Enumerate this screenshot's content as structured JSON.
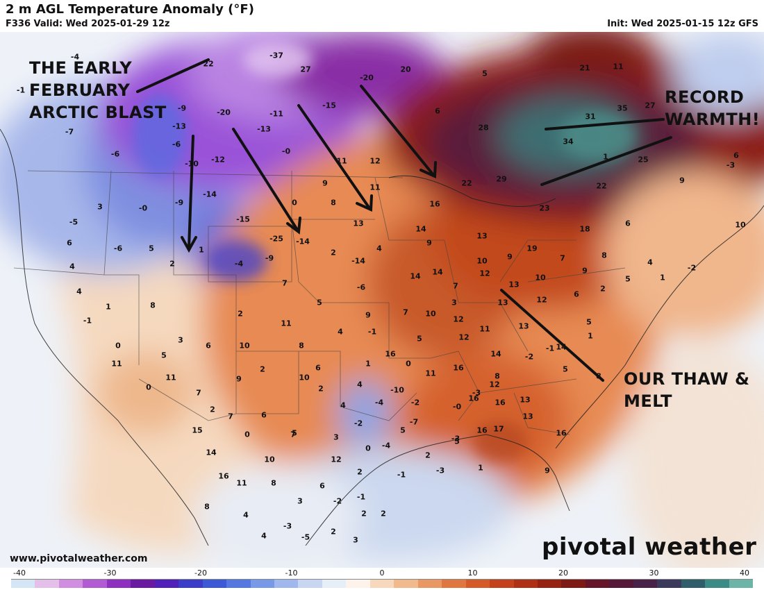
{
  "header": {
    "title": "2 m AGL Temperature Anomaly (°F)",
    "valid": "F336 Valid: Wed 2025-01-29 12z",
    "init": "Init: Wed 2025-01-15 12z GFS"
  },
  "annotations": {
    "arctic_blast": "THE EARLY\nFEBRUARY\nARCTIC BLAST",
    "record_warmth": "RECORD\nWARMTH!",
    "thaw_melt": "OUR THAW &\nMELT"
  },
  "brand": {
    "logo_text": "pivotal weather",
    "website": "www.pivotalweather.com"
  },
  "colorbar": {
    "ticks": [
      "-40",
      "-30",
      "-20",
      "-10",
      "0",
      "10",
      "20",
      "30",
      "40"
    ],
    "colors": [
      "#d4e6f5",
      "#e4bfe9",
      "#d18ee0",
      "#b25ad4",
      "#8f2fbf",
      "#6a1aa0",
      "#5020b8",
      "#3b3dc8",
      "#3d5ad6",
      "#5578e0",
      "#7899e8",
      "#a0b8ee",
      "#c8d6f2",
      "#e6eef8",
      "#fdf3ea",
      "#f8d8bc",
      "#f2b98d",
      "#ea9863",
      "#e07640",
      "#d45a28",
      "#c4421b",
      "#ae3015",
      "#962212",
      "#7d1a16",
      "#66152a",
      "#561838",
      "#4a2148",
      "#3c3a5c",
      "#2f5e6a",
      "#3a8a86",
      "#6cb3a8"
    ]
  },
  "map": {
    "values": [
      {
        "t": "-4",
        "k": "u"
      },
      {
        "t": "-1",
        "k": "u"
      },
      {
        "t": "22",
        "k": "w"
      },
      {
        "t": "-37",
        "k": "u"
      },
      {
        "t": "27",
        "k": "w"
      },
      {
        "t": "-20",
        "k": "u"
      },
      {
        "t": "20",
        "k": "w"
      },
      {
        "t": "5",
        "k": "w"
      },
      {
        "t": "21",
        "k": "w"
      },
      {
        "t": "11",
        "k": "w"
      },
      {
        "t": "-9",
        "k": "u"
      },
      {
        "t": "-20",
        "k": "u"
      },
      {
        "t": "-11",
        "k": "u"
      },
      {
        "t": "-15",
        "k": "u"
      },
      {
        "t": "6",
        "k": "w"
      },
      {
        "t": "28",
        "k": "w"
      },
      {
        "t": "31",
        "k": "w"
      },
      {
        "t": "35",
        "k": "w"
      },
      {
        "t": "27",
        "k": "w"
      },
      {
        "t": "-7",
        "k": "u"
      },
      {
        "t": "-13",
        "k": "u"
      },
      {
        "t": "-13",
        "k": "u"
      },
      {
        "t": "-6",
        "k": "u"
      },
      {
        "t": "-0",
        "k": "u"
      },
      {
        "t": "34",
        "k": "w"
      },
      {
        "t": "1",
        "k": "w"
      },
      {
        "t": "25",
        "k": "w"
      },
      {
        "t": "6",
        "k": "w"
      },
      {
        "t": "-6",
        "k": "u"
      },
      {
        "t": "-10",
        "k": "u"
      },
      {
        "t": "-12",
        "k": "u"
      },
      {
        "t": "11",
        "k": "w"
      },
      {
        "t": "12",
        "k": "w"
      },
      {
        "t": "-3",
        "k": "u"
      },
      {
        "t": "29",
        "k": "w"
      },
      {
        "t": "22",
        "k": "w"
      },
      {
        "t": "22",
        "k": "w"
      },
      {
        "t": "9",
        "k": "w"
      },
      {
        "t": "3",
        "k": "w"
      },
      {
        "t": "-0",
        "k": "u"
      },
      {
        "t": "-9",
        "k": "u"
      },
      {
        "t": "-14",
        "k": "u"
      },
      {
        "t": "0",
        "k": "w"
      },
      {
        "t": "9",
        "k": "w"
      },
      {
        "t": "11",
        "k": "w"
      },
      {
        "t": "16",
        "k": "w"
      },
      {
        "t": "23",
        "k": "w"
      },
      {
        "t": "6",
        "k": "w"
      },
      {
        "t": "-5",
        "k": "u"
      },
      {
        "t": "-15",
        "k": "u"
      },
      {
        "t": "8",
        "k": "w"
      },
      {
        "t": "13",
        "k": "w"
      },
      {
        "t": "14",
        "k": "w"
      },
      {
        "t": "13",
        "k": "w"
      },
      {
        "t": "18",
        "k": "w"
      },
      {
        "t": "10",
        "k": "w"
      },
      {
        "t": "6",
        "k": "w"
      },
      {
        "t": "-6",
        "k": "u"
      },
      {
        "t": "5",
        "k": "w"
      },
      {
        "t": "1",
        "k": "w"
      },
      {
        "t": "-25",
        "k": "u"
      },
      {
        "t": "-14",
        "k": "u"
      },
      {
        "t": "2",
        "k": "w"
      },
      {
        "t": "4",
        "k": "w"
      },
      {
        "t": "9",
        "k": "w"
      },
      {
        "t": "19",
        "k": "w"
      },
      {
        "t": "9",
        "k": "w"
      },
      {
        "t": "7",
        "k": "w"
      },
      {
        "t": "8",
        "k": "w"
      },
      {
        "t": "4",
        "k": "w"
      },
      {
        "t": "2",
        "k": "w"
      },
      {
        "t": "-4",
        "k": "u"
      },
      {
        "t": "-9",
        "k": "u"
      },
      {
        "t": "-14",
        "k": "u"
      },
      {
        "t": "14",
        "k": "w"
      },
      {
        "t": "14",
        "k": "w"
      },
      {
        "t": "12",
        "k": "w"
      },
      {
        "t": "10",
        "k": "w"
      },
      {
        "t": "9",
        "k": "w"
      },
      {
        "t": "4",
        "k": "w"
      },
      {
        "t": "4",
        "k": "w"
      },
      {
        "t": "1",
        "k": "w"
      },
      {
        "t": "8",
        "k": "w"
      },
      {
        "t": "7",
        "k": "w"
      },
      {
        "t": "-6",
        "k": "u"
      },
      {
        "t": "7",
        "k": "w"
      },
      {
        "t": "13",
        "k": "w"
      },
      {
        "t": "10",
        "k": "w"
      },
      {
        "t": "5",
        "k": "w"
      },
      {
        "t": "1",
        "k": "w"
      },
      {
        "t": "-2",
        "k": "u"
      },
      {
        "t": "5",
        "k": "w"
      },
      {
        "t": "3",
        "k": "w"
      },
      {
        "t": "13",
        "k": "w"
      },
      {
        "t": "12",
        "k": "w"
      },
      {
        "t": "6",
        "k": "w"
      },
      {
        "t": "2",
        "k": "w"
      },
      {
        "t": "-1",
        "k": "u"
      },
      {
        "t": "2",
        "k": "w"
      },
      {
        "t": "11",
        "k": "w"
      },
      {
        "t": "9",
        "k": "w"
      },
      {
        "t": "7",
        "k": "w"
      },
      {
        "t": "10",
        "k": "w"
      },
      {
        "t": "12",
        "k": "w"
      },
      {
        "t": "11",
        "k": "w"
      },
      {
        "t": "13",
        "k": "w"
      },
      {
        "t": "5",
        "k": "w"
      },
      {
        "t": "3",
        "k": "w"
      },
      {
        "t": "4",
        "k": "w"
      },
      {
        "t": "-1",
        "k": "u"
      },
      {
        "t": "5",
        "k": "w"
      },
      {
        "t": "12",
        "k": "w"
      },
      {
        "t": "14",
        "k": "w"
      },
      {
        "t": "1",
        "k": "w"
      },
      {
        "t": "0",
        "k": "w"
      },
      {
        "t": "6",
        "k": "w"
      },
      {
        "t": "10",
        "k": "w"
      },
      {
        "t": "8",
        "k": "w"
      },
      {
        "t": "16",
        "k": "w"
      },
      {
        "t": "14",
        "k": "w"
      },
      {
        "t": "-2",
        "k": "u"
      },
      {
        "t": "-1",
        "k": "u"
      },
      {
        "t": "5",
        "k": "w"
      },
      {
        "t": "2",
        "k": "w"
      },
      {
        "t": "6",
        "k": "w"
      },
      {
        "t": "1",
        "k": "w"
      },
      {
        "t": "0",
        "k": "w"
      },
      {
        "t": "11",
        "k": "w"
      },
      {
        "t": "16",
        "k": "w"
      },
      {
        "t": "8",
        "k": "w"
      },
      {
        "t": "5",
        "k": "w"
      },
      {
        "t": "8",
        "k": "w"
      },
      {
        "t": "11",
        "k": "w"
      },
      {
        "t": "0",
        "k": "w"
      },
      {
        "t": "7",
        "k": "w"
      },
      {
        "t": "9",
        "k": "w"
      },
      {
        "t": "10",
        "k": "w"
      },
      {
        "t": "2",
        "k": "w"
      },
      {
        "t": "4",
        "k": "w"
      },
      {
        "t": "-10",
        "k": "u"
      },
      {
        "t": "-3",
        "k": "u"
      },
      {
        "t": "12",
        "k": "w"
      },
      {
        "t": "13",
        "k": "w"
      },
      {
        "t": "11",
        "k": "w"
      },
      {
        "t": "2",
        "k": "w"
      },
      {
        "t": "6",
        "k": "w"
      },
      {
        "t": "4",
        "k": "w"
      },
      {
        "t": "-4",
        "k": "u"
      },
      {
        "t": "-2",
        "k": "u"
      },
      {
        "t": "-0",
        "k": "u"
      },
      {
        "t": "16",
        "k": "w"
      },
      {
        "t": "16",
        "k": "w"
      },
      {
        "t": "13",
        "k": "w"
      },
      {
        "t": "15",
        "k": "w"
      },
      {
        "t": "7",
        "k": "w"
      },
      {
        "t": "0",
        "k": "w"
      },
      {
        "t": "7",
        "k": "w"
      },
      {
        "t": "-2",
        "k": "u"
      },
      {
        "t": "-7",
        "k": "u"
      },
      {
        "t": "5",
        "k": "w"
      },
      {
        "t": "16",
        "k": "w"
      },
      {
        "t": "17",
        "k": "w"
      },
      {
        "t": "16",
        "k": "w"
      },
      {
        "t": "14",
        "k": "w"
      },
      {
        "t": "5",
        "k": "w"
      },
      {
        "t": "3",
        "k": "w"
      },
      {
        "t": "0",
        "k": "w"
      },
      {
        "t": "-4",
        "k": "u"
      },
      {
        "t": "-3",
        "k": "u"
      },
      {
        "t": "16",
        "k": "w"
      },
      {
        "t": "10",
        "k": "w"
      },
      {
        "t": "12",
        "k": "w"
      },
      {
        "t": "-1",
        "k": "u"
      },
      {
        "t": "-3",
        "k": "u"
      },
      {
        "t": "1",
        "k": "w"
      },
      {
        "t": "9",
        "k": "w"
      },
      {
        "t": "11",
        "k": "w"
      },
      {
        "t": "8",
        "k": "w"
      },
      {
        "t": "6",
        "k": "w"
      },
      {
        "t": "2",
        "k": "w"
      },
      {
        "t": "8",
        "k": "w"
      },
      {
        "t": "4",
        "k": "w"
      },
      {
        "t": "3",
        "k": "w"
      },
      {
        "t": "-2",
        "k": "u"
      },
      {
        "t": "-1",
        "k": "u"
      },
      {
        "t": "2",
        "k": "w"
      },
      {
        "t": "-3",
        "k": "u"
      },
      {
        "t": "4",
        "k": "w"
      },
      {
        "t": "-5",
        "k": "u"
      },
      {
        "t": "2",
        "k": "w"
      },
      {
        "t": "3",
        "k": "w"
      },
      {
        "t": "2",
        "k": "w"
      },
      {
        "t": "5",
        "k": "w"
      },
      {
        "t": "2",
        "k": "w"
      },
      {
        "t": "3",
        "k": "w"
      }
    ]
  }
}
